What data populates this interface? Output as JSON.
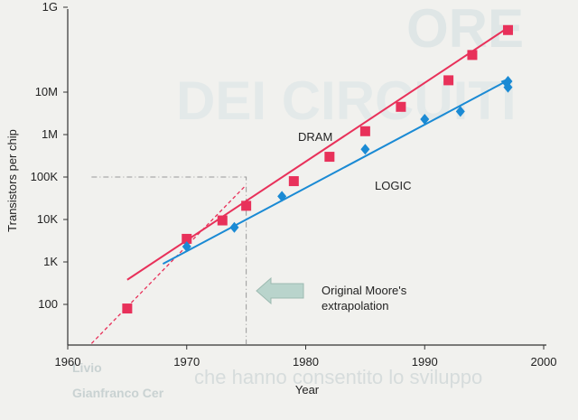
{
  "chart_data": {
    "type": "scatter",
    "title": "",
    "xlabel": "Year",
    "ylabel": "Transistors per chip",
    "xlim": [
      1960,
      2000
    ],
    "ylim_log10": [
      1,
      9
    ],
    "scale_y": "log",
    "x_ticks": [
      1960,
      1970,
      1980,
      1990,
      2000
    ],
    "y_ticks": [
      {
        "value": 100,
        "label": "100"
      },
      {
        "value": 1000,
        "label": "1K"
      },
      {
        "value": 10000,
        "label": "10K"
      },
      {
        "value": 100000,
        "label": "100K"
      },
      {
        "value": 1000000,
        "label": "1M"
      },
      {
        "value": 10000000,
        "label": "10M"
      },
      {
        "value": 1000000000,
        "label": "1G"
      }
    ],
    "series": [
      {
        "name": "DRAM",
        "color": "#e8315a",
        "marker": "square",
        "points": [
          {
            "x": 1965,
            "y": 80
          },
          {
            "x": 1970,
            "y": 3500
          },
          {
            "x": 1973,
            "y": 9500
          },
          {
            "x": 1975,
            "y": 21000
          },
          {
            "x": 1979,
            "y": 80000
          },
          {
            "x": 1982,
            "y": 300000
          },
          {
            "x": 1985,
            "y": 1200000
          },
          {
            "x": 1988,
            "y": 4500000
          },
          {
            "x": 1992,
            "y": 19000000
          },
          {
            "x": 1994,
            "y": 75000000
          },
          {
            "x": 1997,
            "y": 290000000
          }
        ],
        "trend": {
          "x": [
            1965,
            1997
          ],
          "y": [
            380,
            330000000
          ]
        }
      },
      {
        "name": "LOGIC",
        "color": "#1a8ad4",
        "marker": "diamond",
        "points": [
          {
            "x": 1970,
            "y": 2300
          },
          {
            "x": 1974,
            "y": 6500
          },
          {
            "x": 1978,
            "y": 35000
          },
          {
            "x": 1985,
            "y": 450000
          },
          {
            "x": 1990,
            "y": 2300000
          },
          {
            "x": 1993,
            "y": 3500000
          },
          {
            "x": 1997,
            "y": 13000000
          },
          {
            "x": 1997,
            "y": 18000000
          }
        ],
        "trend": {
          "x": [
            1968,
            1997
          ],
          "y": [
            900,
            19000000
          ]
        }
      }
    ],
    "moore_extrapolation": {
      "line": {
        "x": [
          1962,
          1975
        ],
        "y": [
          12,
          65000
        ]
      },
      "box": {
        "x": [
          1962,
          1975
        ],
        "y_top": 100000
      }
    },
    "annotations": [
      {
        "text": "Original Moore's",
        "x": 1978,
        "y": 600
      },
      {
        "text": "extrapolation",
        "x": 1978,
        "y": 280
      }
    ]
  },
  "background": {
    "headline_top": "ORE",
    "headline_bottom": "DEI CIRCUITI",
    "caption_left_1": "Livio",
    "caption_left_2": "Gianfranco Cer",
    "caption_body": "che hanno consentito lo sviluppo"
  },
  "colors": {
    "background": "#f1f1ee",
    "axis": "#333333",
    "moore_dashed": "#e8315a",
    "moore_box": "#999999",
    "arrow_fill": "#b9d4cc"
  }
}
